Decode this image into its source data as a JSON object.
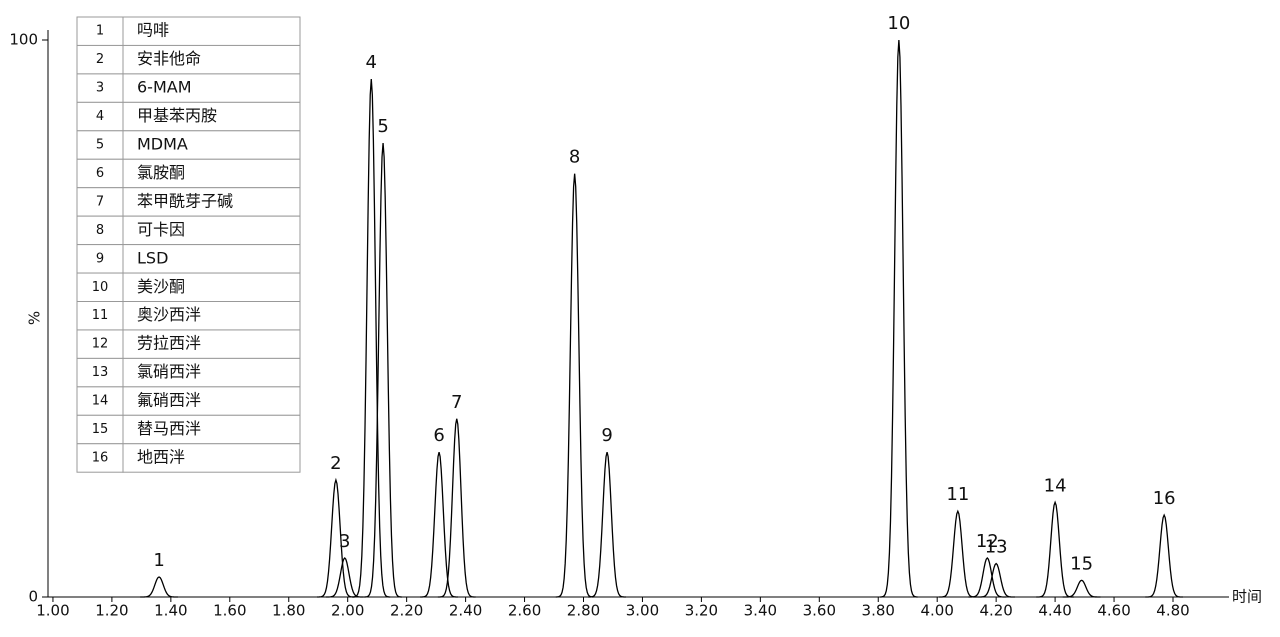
{
  "chart_data": {
    "type": "chromatogram",
    "xlabel": "时间",
    "ylabel": "%",
    "xlim": [
      0.99,
      4.99
    ],
    "ylim": [
      0,
      100
    ],
    "xticks": [
      {
        "value": 1.0,
        "label": "1.00"
      },
      {
        "value": 1.2,
        "label": "1.20"
      },
      {
        "value": 1.4,
        "label": "1.40"
      },
      {
        "value": 1.6,
        "label": "1.60"
      },
      {
        "value": 1.8,
        "label": "1.80"
      },
      {
        "value": 2.0,
        "label": "2.00"
      },
      {
        "value": 2.2,
        "label": "2.20"
      },
      {
        "value": 2.4,
        "label": "2.40"
      },
      {
        "value": 2.6,
        "label": "2.60"
      },
      {
        "value": 2.8,
        "label": "2.80"
      },
      {
        "value": 3.0,
        "label": "3.00"
      },
      {
        "value": 3.2,
        "label": "3.20"
      },
      {
        "value": 3.4,
        "label": "3.40"
      },
      {
        "value": 3.6,
        "label": "3.60"
      },
      {
        "value": 3.8,
        "label": "3.80"
      },
      {
        "value": 4.0,
        "label": "4.00"
      },
      {
        "value": 4.2,
        "label": "4.20"
      },
      {
        "value": 4.4,
        "label": "4.40"
      },
      {
        "value": 4.6,
        "label": "4.60"
      },
      {
        "value": 4.8,
        "label": "4.80"
      }
    ],
    "yticks": [
      0,
      100
    ],
    "color": "#000000",
    "peaks": [
      {
        "label": "1",
        "name": "吗啡",
        "x": 1.36,
        "height": 3.6
      },
      {
        "label": "2",
        "name": "安非他命",
        "x": 1.96,
        "height": 21
      },
      {
        "label": "3",
        "name": "6-MAM",
        "x": 1.99,
        "height": 7
      },
      {
        "label": "4",
        "name": "甲基苯丙胺",
        "x": 2.08,
        "height": 93
      },
      {
        "label": "5",
        "name": "MDMA",
        "x": 2.12,
        "height": 81.5
      },
      {
        "label": "6",
        "name": "氯胺酮",
        "x": 2.31,
        "height": 26
      },
      {
        "label": "7",
        "name": "苯甲酰芽子碱",
        "x": 2.37,
        "height": 32
      },
      {
        "label": "8",
        "name": "可卡因",
        "x": 2.77,
        "height": 76
      },
      {
        "label": "9",
        "name": "LSD",
        "x": 2.88,
        "height": 26
      },
      {
        "label": "10",
        "name": "美沙酮",
        "x": 3.87,
        "height": 100
      },
      {
        "label": "11",
        "name": "奥沙西泮",
        "x": 4.07,
        "height": 15.4
      },
      {
        "label": "12",
        "name": "劳拉西泮",
        "x": 4.17,
        "height": 7
      },
      {
        "label": "13",
        "name": "氯硝西泮",
        "x": 4.2,
        "height": 6
      },
      {
        "label": "14",
        "name": "氟硝西泮",
        "x": 4.4,
        "height": 17
      },
      {
        "label": "15",
        "name": "替马西泮",
        "x": 4.49,
        "height": 3
      },
      {
        "label": "16",
        "name": "地西泮",
        "x": 4.77,
        "height": 14.7
      }
    ]
  }
}
